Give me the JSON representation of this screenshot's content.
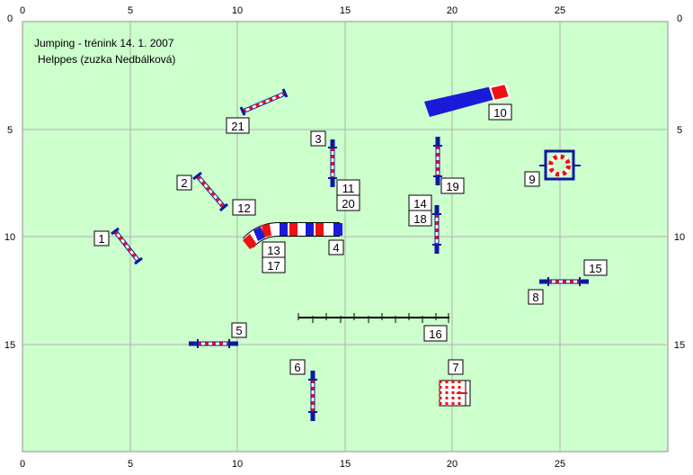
{
  "course": {
    "title_line1": "Jumping - trénink 14. 1. 2007",
    "title_line2": "Helppes (zuzka Nedbálková)",
    "field_color": "#ccffcc",
    "grid_color": "#b0b0b0",
    "bar_blue": "#0a1aa0",
    "tunnel_red": "#ee1111",
    "tunnel_blue": "#1a1ad8"
  },
  "axes": {
    "x_ticks": [
      "0",
      "5",
      "10",
      "15",
      "20",
      "25"
    ],
    "y_ticks": [
      "0",
      "5",
      "10",
      "15"
    ]
  },
  "labels": {
    "n1": "1",
    "n2": "2",
    "n3": "3",
    "n4": "4",
    "n5": "5",
    "n6": "6",
    "n7": "7",
    "n8": "8",
    "n9": "9",
    "n10": "10",
    "n11": "11",
    "n12": "12",
    "n13": "13",
    "n14": "14",
    "n15": "15",
    "n16": "16",
    "n17": "17",
    "n18": "18",
    "n19": "19",
    "n20": "20",
    "n21": "21"
  }
}
